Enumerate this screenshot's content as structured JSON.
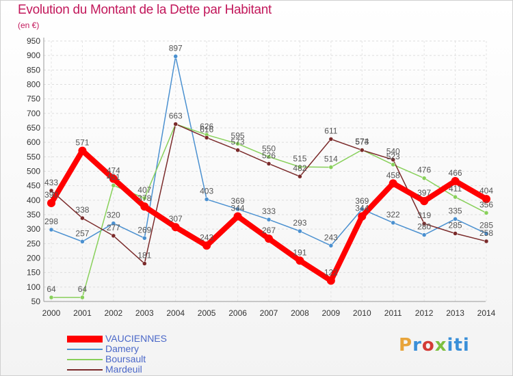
{
  "header": {
    "title": "Evolution du Montant de la Dette par Habitant",
    "unit": "(en €)"
  },
  "logo": {
    "text": "Proxiti"
  },
  "chart_data": {
    "type": "line",
    "title": "Evolution du Montant de la Dette par Habitant",
    "ylabel": "(en €)",
    "xlabel": "",
    "x": [
      "2000",
      "2001",
      "2002",
      "2003",
      "2004",
      "2005",
      "2006",
      "2007",
      "2008",
      "2009",
      "2010",
      "2011",
      "2012",
      "2013",
      "2014"
    ],
    "ylim": [
      50,
      950
    ],
    "yticks": [
      50,
      100,
      150,
      200,
      250,
      300,
      350,
      400,
      450,
      500,
      550,
      600,
      650,
      700,
      750,
      800,
      850,
      900,
      950
    ],
    "grid": true,
    "legend_position": "bottom-left",
    "series": [
      {
        "name": "VAUCIENNES",
        "color": "#ff0000",
        "values": [
          390,
          571,
          474,
          378,
          307,
          243,
          344,
          267,
          191,
          122,
          344,
          458,
          397,
          466,
          404
        ]
      },
      {
        "name": "Damery",
        "color": "#4a90d0",
        "values": [
          298,
          257,
          320,
          269,
          897,
          403,
          369,
          333,
          293,
          243,
          369,
          322,
          280,
          335,
          285
        ]
      },
      {
        "name": "Boursault",
        "color": "#88d05a",
        "values": [
          64,
          64,
          451,
          407,
          663,
          626,
          595,
          550,
          515,
          514,
          574,
          523,
          476,
          411,
          356
        ]
      },
      {
        "name": "Mardeuil",
        "color": "#7a2a2a",
        "values": [
          433,
          338,
          277,
          181,
          663,
          616,
          573,
          526,
          482,
          611,
          573,
          540,
          319,
          285,
          258
        ]
      }
    ],
    "data_labels": [
      {
        "label": "433",
        "x": "2000",
        "y": 433
      },
      {
        "label": "390",
        "x": "2000",
        "y": 390
      },
      {
        "label": "298",
        "x": "2000",
        "y": 298
      },
      {
        "label": "64",
        "x": "2000",
        "y": 64
      },
      {
        "label": "571",
        "x": "2001",
        "y": 571
      },
      {
        "label": "338",
        "x": "2001",
        "y": 338
      },
      {
        "label": "257",
        "x": "2001",
        "y": 257
      },
      {
        "label": "64",
        "x": "2001",
        "y": 64
      },
      {
        "label": "474",
        "x": "2002",
        "y": 474
      },
      {
        "label": "451",
        "x": "2002",
        "y": 451
      },
      {
        "label": "320",
        "x": "2002",
        "y": 320
      },
      {
        "label": "277",
        "x": "2002",
        "y": 277
      },
      {
        "label": "407",
        "x": "2003",
        "y": 407
      },
      {
        "label": "378",
        "x": "2003",
        "y": 378
      },
      {
        "label": "269",
        "x": "2003",
        "y": 269
      },
      {
        "label": "181",
        "x": "2003",
        "y": 181
      },
      {
        "label": "897",
        "x": "2004",
        "y": 897
      },
      {
        "label": "663",
        "x": "2004",
        "y": 663
      },
      {
        "label": "307",
        "x": "2004",
        "y": 307
      },
      {
        "label": "626",
        "x": "2005",
        "y": 626
      },
      {
        "label": "616",
        "x": "2005",
        "y": 616
      },
      {
        "label": "403",
        "x": "2005",
        "y": 403
      },
      {
        "label": "243",
        "x": "2005",
        "y": 243
      },
      {
        "label": "595",
        "x": "2006",
        "y": 595
      },
      {
        "label": "573",
        "x": "2006",
        "y": 573
      },
      {
        "label": "369",
        "x": "2006",
        "y": 369
      },
      {
        "label": "344",
        "x": "2006",
        "y": 344
      },
      {
        "label": "550",
        "x": "2007",
        "y": 550
      },
      {
        "label": "526",
        "x": "2007",
        "y": 526
      },
      {
        "label": "333",
        "x": "2007",
        "y": 333
      },
      {
        "label": "267",
        "x": "2007",
        "y": 267
      },
      {
        "label": "515",
        "x": "2008",
        "y": 515
      },
      {
        "label": "482",
        "x": "2008",
        "y": 482
      },
      {
        "label": "293",
        "x": "2008",
        "y": 293
      },
      {
        "label": "191",
        "x": "2008",
        "y": 191
      },
      {
        "label": "611",
        "x": "2009",
        "y": 611
      },
      {
        "label": "514",
        "x": "2009",
        "y": 514
      },
      {
        "label": "243",
        "x": "2009",
        "y": 243
      },
      {
        "label": "122",
        "x": "2009",
        "y": 122
      },
      {
        "label": "574",
        "x": "2010",
        "y": 574
      },
      {
        "label": "573",
        "x": "2010",
        "y": 573
      },
      {
        "label": "369",
        "x": "2010",
        "y": 369
      },
      {
        "label": "344",
        "x": "2010",
        "y": 344
      },
      {
        "label": "540",
        "x": "2011",
        "y": 540
      },
      {
        "label": "523",
        "x": "2011",
        "y": 523
      },
      {
        "label": "458",
        "x": "2011",
        "y": 458
      },
      {
        "label": "322",
        "x": "2011",
        "y": 322
      },
      {
        "label": "476",
        "x": "2012",
        "y": 476
      },
      {
        "label": "397",
        "x": "2012",
        "y": 397
      },
      {
        "label": "319",
        "x": "2012",
        "y": 319
      },
      {
        "label": "280",
        "x": "2012",
        "y": 280
      },
      {
        "label": "466",
        "x": "2013",
        "y": 466
      },
      {
        "label": "411",
        "x": "2013",
        "y": 411
      },
      {
        "label": "335",
        "x": "2013",
        "y": 335
      },
      {
        "label": "285",
        "x": "2013",
        "y": 285
      },
      {
        "label": "404",
        "x": "2014",
        "y": 404
      },
      {
        "label": "356",
        "x": "2014",
        "y": 356
      },
      {
        "label": "285",
        "x": "2014",
        "y": 285
      },
      {
        "label": "258",
        "x": "2014",
        "y": 258
      }
    ]
  }
}
